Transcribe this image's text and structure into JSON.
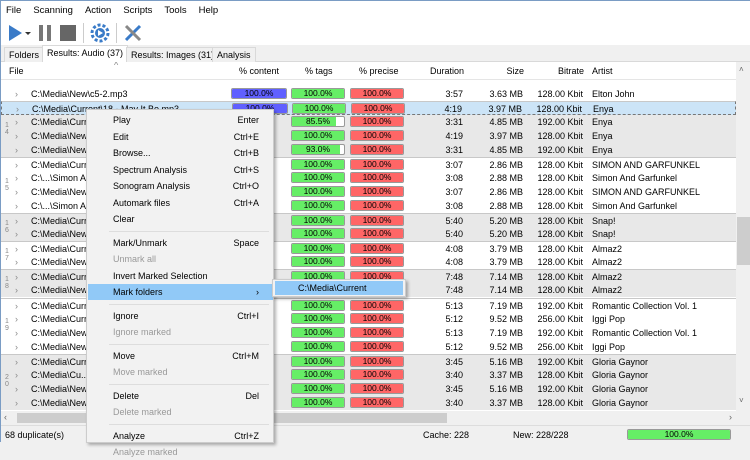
{
  "menubar": [
    "File",
    "Scanning",
    "Action",
    "Scripts",
    "Tools",
    "Help"
  ],
  "toolbar": {
    "icons": [
      "play-icon",
      "dropdown-arrow-icon",
      "pause-icon",
      "stop-icon",
      "settings-gear-icon",
      "tools-icon"
    ]
  },
  "tabs": [
    "Folders",
    "Results: Audio (37)",
    "Results: Images (31)",
    "Analysis"
  ],
  "columns": {
    "file": "File",
    "content": "% content",
    "tags": "% tags",
    "precise": "% precise",
    "duration": "Duration",
    "size": "Size",
    "bitrate": "Bitrate",
    "artist": "Artist"
  },
  "colors": {
    "content": "#6060ff",
    "tags": "#66ee66",
    "precise": "#ff6666",
    "selected": "#cce4f7",
    "highlight": "#91c9f7"
  },
  "rows": [
    {
      "file": "C:\\Media\\New\\c5-2.mp3",
      "content": "100.0%",
      "tags": "100.0%",
      "tags_pct": 100,
      "precise": "100.0%",
      "duration": "3:57",
      "size": "3.63 MB",
      "bitrate": "128.00 Kbit",
      "artist": "Elton John"
    },
    {
      "file": "C:\\Media\\Current\\18 - May It Be.mp3",
      "content": "100.0%",
      "tags": "100.0%",
      "tags_pct": 100,
      "precise": "100.0%",
      "duration": "4:19",
      "size": "3.97 MB",
      "bitrate": "128.00 Kbit",
      "artist": "Enya"
    },
    {
      "file": "C:\\Media\\Curr",
      "tags": "85.5%",
      "tags_pct": 85.5,
      "precise": "100.0%",
      "duration": "3:31",
      "size": "4.85 MB",
      "bitrate": "192.00 Kbit",
      "artist": "Enya"
    },
    {
      "file": "C:\\Media\\New",
      "tags": "100.0%",
      "tags_pct": 100,
      "precise": "100.0%",
      "duration": "4:19",
      "size": "3.97 MB",
      "bitrate": "128.00 Kbit",
      "artist": "Enya"
    },
    {
      "file": "C:\\Media\\New",
      "tags": "93.0%",
      "tags_pct": 93,
      "precise": "100.0%",
      "duration": "3:31",
      "size": "4.85 MB",
      "bitrate": "192.00 Kbit",
      "artist": "Enya"
    },
    {
      "file": "C:\\Media\\Curr",
      "tags": "100.0%",
      "tags_pct": 100,
      "precise": "100.0%",
      "duration": "3:07",
      "size": "2.86 MB",
      "bitrate": "128.00 Kbit",
      "artist": "SIMON AND GARFUNKEL"
    },
    {
      "file": "C:\\...\\Simon A",
      "tags": "100.0%",
      "tags_pct": 100,
      "precise": "100.0%",
      "duration": "3:08",
      "size": "2.88 MB",
      "bitrate": "128.00 Kbit",
      "artist": "Simon And Garfunkel"
    },
    {
      "file": "C:\\Media\\New",
      "tags": "100.0%",
      "tags_pct": 100,
      "precise": "100.0%",
      "duration": "3:07",
      "size": "2.86 MB",
      "bitrate": "128.00 Kbit",
      "artist": "SIMON AND GARFUNKEL"
    },
    {
      "file": "C:\\...\\Simon A",
      "tags": "100.0%",
      "tags_pct": 100,
      "precise": "100.0%",
      "duration": "3:08",
      "size": "2.88 MB",
      "bitrate": "128.00 Kbit",
      "artist": "Simon And Garfunkel"
    },
    {
      "file": "C:\\Media\\Curr",
      "tags": "100.0%",
      "tags_pct": 100,
      "precise": "100.0%",
      "duration": "5:40",
      "size": "5.20 MB",
      "bitrate": "128.00 Kbit",
      "artist": "Snap!"
    },
    {
      "file": "C:\\Media\\New",
      "tags": "100.0%",
      "tags_pct": 100,
      "precise": "100.0%",
      "duration": "5:40",
      "size": "5.20 MB",
      "bitrate": "128.00 Kbit",
      "artist": "Snap!"
    },
    {
      "file": "C:\\Media\\Curr",
      "tags": "100.0%",
      "tags_pct": 100,
      "precise": "100.0%",
      "duration": "4:08",
      "size": "3.79 MB",
      "bitrate": "128.00 Kbit",
      "artist": "Almaz2"
    },
    {
      "file": "C:\\Media\\New",
      "tags": "100.0%",
      "tags_pct": 100,
      "precise": "100.0%",
      "duration": "4:08",
      "size": "3.79 MB",
      "bitrate": "128.00 Kbit",
      "artist": "Almaz2"
    },
    {
      "file": "C:\\Media\\Curr",
      "tags": "100.0%",
      "tags_pct": 100,
      "precise": "100.0%",
      "duration": "7:48",
      "size": "7.14 MB",
      "bitrate": "128.00 Kbit",
      "artist": "Almaz2"
    },
    {
      "file": "C:\\Media\\New",
      "duration": "7:48",
      "size": "7.14 MB",
      "bitrate": "128.00 Kbit",
      "artist": "Almaz2"
    },
    {
      "file": "C:\\Media\\Curr",
      "tags": "100.0%",
      "tags_pct": 100,
      "precise": "100.0%",
      "duration": "5:13",
      "size": "7.19 MB",
      "bitrate": "192.00 Kbit",
      "artist": "Romantic Collection Vol. 1"
    },
    {
      "file": "C:\\Media\\Curr",
      "tags": "100.0%",
      "tags_pct": 100,
      "precise": "100.0%",
      "duration": "5:12",
      "size": "9.52 MB",
      "bitrate": "256.00 Kbit",
      "artist": "Iggi Pop"
    },
    {
      "file": "C:\\Media\\New",
      "tags": "100.0%",
      "tags_pct": 100,
      "precise": "100.0%",
      "duration": "5:13",
      "size": "7.19 MB",
      "bitrate": "192.00 Kbit",
      "artist": "Romantic Collection Vol. 1"
    },
    {
      "file": "C:\\Media\\New",
      "tags": "100.0%",
      "tags_pct": 100,
      "precise": "100.0%",
      "duration": "5:12",
      "size": "9.52 MB",
      "bitrate": "256.00 Kbit",
      "artist": "Iggi Pop"
    },
    {
      "file": "C:\\Media\\Curr",
      "tags": "100.0%",
      "tags_pct": 100,
      "precise": "100.0%",
      "duration": "3:45",
      "size": "5.16 MB",
      "bitrate": "192.00 Kbit",
      "artist": "Gloria Gaynor"
    },
    {
      "file": "C:\\Media\\Cu...",
      "tags": "100.0%",
      "tags_pct": 100,
      "precise": "100.0%",
      "duration": "3:40",
      "size": "3.37 MB",
      "bitrate": "128.00 Kbit",
      "artist": "Gloria Gaynor"
    },
    {
      "file": "C:\\Media\\New",
      "tags": "100.0%",
      "tags_pct": 100,
      "precise": "100.0%",
      "duration": "3:45",
      "size": "5.16 MB",
      "bitrate": "192.00 Kbit",
      "artist": "Gloria Gaynor"
    },
    {
      "file": "C:\\Media\\New",
      "tags": "100.0%",
      "tags_pct": 100,
      "precise": "100.0%",
      "duration": "3:40",
      "size": "3.37 MB",
      "bitrate": "128.00 Kbit",
      "artist": "Gloria Gaynor"
    }
  ],
  "groups": [
    {
      "label": "14",
      "start": 1,
      "count": 4,
      "gray": true
    },
    {
      "label": "15",
      "start": 5,
      "count": 4,
      "gray": false
    },
    {
      "label": "16",
      "start": 9,
      "count": 2,
      "gray": true
    },
    {
      "label": "17",
      "start": 11,
      "count": 2,
      "gray": false
    },
    {
      "label": "18",
      "start": 13,
      "count": 2,
      "gray": true
    },
    {
      "label": "19",
      "start": 15,
      "count": 4,
      "gray": false
    },
    {
      "label": "20",
      "start": 19,
      "count": 4,
      "gray": true
    }
  ],
  "selected_row": 1,
  "context_menu": [
    {
      "label": "Play",
      "key": "Enter"
    },
    {
      "label": "Edit",
      "key": "Ctrl+E"
    },
    {
      "label": "Browse...",
      "key": "Ctrl+B"
    },
    {
      "label": "Spectrum Analysis",
      "key": "Ctrl+S"
    },
    {
      "label": "Sonogram Analysis",
      "key": "Ctrl+O"
    },
    {
      "label": "Automark files",
      "key": "Ctrl+A"
    },
    {
      "label": "Clear",
      "key": ""
    },
    {
      "sep": true
    },
    {
      "label": "Mark/Unmark",
      "key": "Space"
    },
    {
      "label": "Unmark all",
      "key": "",
      "disabled": true
    },
    {
      "label": "Invert Marked Selection",
      "key": ""
    },
    {
      "label": "Mark folders",
      "key": "›",
      "highlight": true
    },
    {
      "sep": true
    },
    {
      "label": "Ignore",
      "key": "Ctrl+I"
    },
    {
      "label": "Ignore marked",
      "key": "",
      "disabled": true
    },
    {
      "sep": true
    },
    {
      "label": "Move",
      "key": "Ctrl+M"
    },
    {
      "label": "Move marked",
      "key": "",
      "disabled": true
    },
    {
      "sep": true
    },
    {
      "label": "Delete",
      "key": "Del"
    },
    {
      "label": "Delete marked",
      "key": "",
      "disabled": true
    },
    {
      "sep": true
    },
    {
      "label": "Analyze",
      "key": "Ctrl+Z"
    },
    {
      "label": "Analyze marked",
      "key": "",
      "disabled": true
    }
  ],
  "submenu": {
    "item": "C:\\Media\\Current"
  },
  "status": {
    "duplicates": "68 duplicate(s)",
    "cache": "Cache: 228",
    "new": "New: 228/228",
    "progress": "100.0%",
    "progress_pct": 100
  }
}
